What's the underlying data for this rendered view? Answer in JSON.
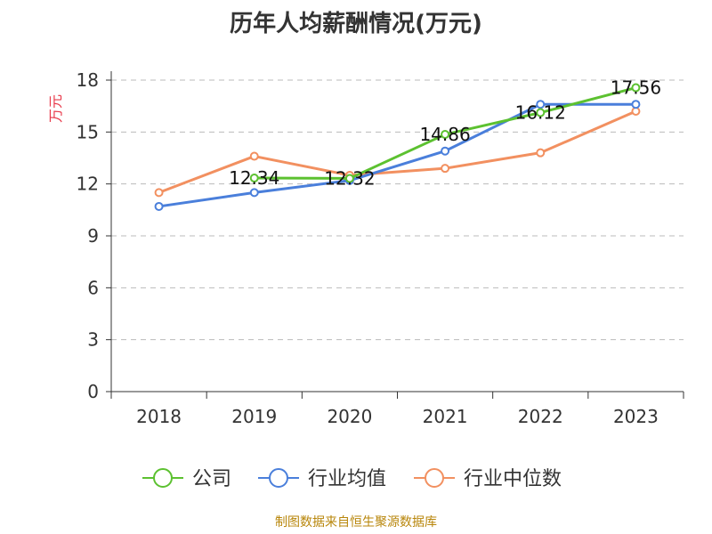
{
  "title": "历年人均薪酬情况(万元)",
  "footer": "制图数据来自恒生聚源数据库",
  "chart_data": {
    "type": "line",
    "title": "历年人均薪酬情况(万元)",
    "ylabel": "万元",
    "xlabel": "",
    "categories": [
      "2018",
      "2019",
      "2020",
      "2021",
      "2022",
      "2023"
    ],
    "ylim": [
      0,
      18
    ],
    "yticks": [
      0,
      3,
      6,
      9,
      12,
      15,
      18
    ],
    "grid": true,
    "legend": "bottom",
    "series": [
      {
        "name": "公司",
        "color": "#5cc130",
        "values": [
          null,
          12.34,
          12.32,
          14.86,
          16.12,
          17.56
        ],
        "labels": [
          "",
          "12.34",
          "12.32",
          "14.86",
          "16.12",
          "17.56"
        ]
      },
      {
        "name": "行业均值",
        "color": "#4a7fdb",
        "values": [
          10.7,
          11.5,
          12.2,
          13.9,
          16.6,
          16.6
        ],
        "labels": [
          "",
          "",
          "",
          "",
          "",
          ""
        ]
      },
      {
        "name": "行业中位数",
        "color": "#f29060",
        "values": [
          11.5,
          13.6,
          12.5,
          12.9,
          13.8,
          16.2
        ],
        "labels": [
          "",
          "",
          "",
          "",
          "",
          ""
        ]
      }
    ]
  }
}
